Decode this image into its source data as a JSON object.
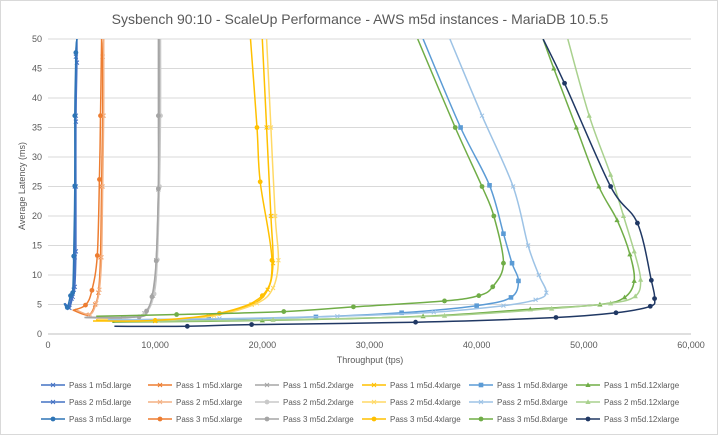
{
  "chart_data": {
    "type": "line",
    "title": "Sysbench 90:10 - ScaleUp Performance - AWS m5d instances - MariaDB 10.5.5",
    "xlabel": "Throughput (tps)",
    "ylabel": "Average Latency (ms)",
    "xlim": [
      0,
      60000
    ],
    "ylim": [
      0,
      50
    ],
    "x_ticks": [
      0,
      10000,
      20000,
      30000,
      40000,
      50000,
      60000
    ],
    "x_tick_labels": [
      "0",
      "10,000",
      "20,000",
      "30,000",
      "40,000",
      "50,000",
      "60,000"
    ],
    "y_ticks": [
      0,
      5,
      10,
      15,
      20,
      25,
      30,
      35,
      40,
      45,
      50
    ],
    "grid": "horizontal",
    "legend_position": "bottom",
    "series": [
      {
        "name": "Pass 1 m5d.large",
        "color": "#4472c4",
        "marker": "x",
        "points": [
          [
            1600,
            5.2
          ],
          [
            1900,
            4.5
          ],
          [
            2200,
            6.0
          ],
          [
            2400,
            7.5
          ],
          [
            2500,
            13
          ],
          [
            2500,
            25
          ],
          [
            2600,
            37
          ],
          [
            2600,
            47
          ],
          [
            2700,
            50
          ]
        ]
      },
      {
        "name": "Pass 1 m5d.xlarge",
        "color": "#ed7d31",
        "marker": "x",
        "points": [
          [
            2400,
            4.0
          ],
          [
            3800,
            3.2
          ],
          [
            4400,
            5.0
          ],
          [
            4700,
            7.0
          ],
          [
            4900,
            13
          ],
          [
            5000,
            25
          ],
          [
            5100,
            37
          ],
          [
            5100,
            47
          ],
          [
            5200,
            50
          ]
        ]
      },
      {
        "name": "Pass 1 m5d.2xlarge",
        "color": "#a5a5a5",
        "marker": "x",
        "points": [
          [
            3500,
            2.8
          ],
          [
            7000,
            2.7
          ],
          [
            9000,
            3.5
          ],
          [
            9800,
            6.5
          ],
          [
            10100,
            12.5
          ],
          [
            10300,
            24.5
          ],
          [
            10400,
            37
          ],
          [
            10400,
            50
          ]
        ]
      },
      {
        "name": "Pass 1 m5d.4xlarge",
        "color": "#ffc000",
        "marker": "x",
        "points": [
          [
            4500,
            2.4
          ],
          [
            10000,
            2.2
          ],
          [
            15000,
            3.0
          ],
          [
            19000,
            5.0
          ],
          [
            20500,
            7.5
          ],
          [
            21000,
            12
          ],
          [
            20800,
            20
          ],
          [
            20400,
            35
          ],
          [
            20000,
            50
          ]
        ]
      },
      {
        "name": "Pass 1 m5d.8xlarge",
        "color": "#5b9bd5",
        "marker": "square",
        "points": [
          [
            5500,
            2.3
          ],
          [
            15000,
            2.5
          ],
          [
            25000,
            2.9
          ],
          [
            33000,
            3.6
          ],
          [
            40000,
            4.8
          ],
          [
            43200,
            6.2
          ],
          [
            43900,
            9.0
          ],
          [
            43300,
            12
          ],
          [
            42500,
            17
          ],
          [
            41200,
            25.2
          ],
          [
            38500,
            35
          ],
          [
            35000,
            50
          ]
        ]
      },
      {
        "name": "Pass 1 m5d.12xlarge",
        "color": "#70ad47",
        "marker": "triangle",
        "points": [
          [
            6000,
            2.0
          ],
          [
            20000,
            2.3
          ],
          [
            35000,
            3.0
          ],
          [
            45000,
            4.2
          ],
          [
            51500,
            5.0
          ],
          [
            53800,
            6.2
          ],
          [
            54700,
            9.0
          ],
          [
            54300,
            13.5
          ],
          [
            53100,
            19.3
          ],
          [
            51400,
            25
          ],
          [
            49300,
            35
          ],
          [
            47200,
            45
          ],
          [
            46200,
            50
          ]
        ]
      },
      {
        "name": "Pass 2 m5d.large",
        "color": "#4472c4",
        "marker": "x",
        "points": [
          [
            1700,
            5.0
          ],
          [
            2000,
            4.4
          ],
          [
            2300,
            6.3
          ],
          [
            2500,
            8.0
          ],
          [
            2600,
            14
          ],
          [
            2600,
            25
          ],
          [
            2600,
            36
          ],
          [
            2700,
            46
          ],
          [
            2700,
            50
          ]
        ]
      },
      {
        "name": "Pass 2 m5d.xlarge",
        "color": "#f4b183",
        "marker": "x",
        "points": [
          [
            2500,
            4.2
          ],
          [
            3900,
            3.3
          ],
          [
            4500,
            5.2
          ],
          [
            4800,
            7.5
          ],
          [
            5000,
            13
          ],
          [
            5100,
            25
          ],
          [
            5200,
            37
          ],
          [
            5200,
            50
          ]
        ]
      },
      {
        "name": "Pass 2 m5d.2xlarge",
        "color": "#c9c9c9",
        "marker": "circle",
        "points": [
          [
            3600,
            2.9
          ],
          [
            7100,
            2.8
          ],
          [
            9100,
            3.6
          ],
          [
            9900,
            6.8
          ],
          [
            10200,
            12.6
          ],
          [
            10400,
            25
          ],
          [
            10500,
            37
          ],
          [
            10500,
            50
          ]
        ]
      },
      {
        "name": "Pass 2 m5d.4xlarge",
        "color": "#ffd966",
        "marker": "x",
        "points": [
          [
            4600,
            2.5
          ],
          [
            10200,
            2.3
          ],
          [
            15500,
            3.1
          ],
          [
            19500,
            5.2
          ],
          [
            21000,
            7.8
          ],
          [
            21500,
            12.5
          ],
          [
            21200,
            20
          ],
          [
            20800,
            35
          ],
          [
            20400,
            50
          ]
        ]
      },
      {
        "name": "Pass 2 m5d.8xlarge",
        "color": "#9dc3e6",
        "marker": "x",
        "points": [
          [
            5600,
            2.4
          ],
          [
            16000,
            2.6
          ],
          [
            27000,
            3.0
          ],
          [
            36000,
            3.7
          ],
          [
            42500,
            4.8
          ],
          [
            45500,
            5.8
          ],
          [
            46500,
            7.0
          ],
          [
            45800,
            10
          ],
          [
            44800,
            15
          ],
          [
            43400,
            25
          ],
          [
            40500,
            37
          ],
          [
            37500,
            50
          ]
        ]
      },
      {
        "name": "Pass 2 m5d.12xlarge",
        "color": "#a9d18e",
        "marker": "triangle",
        "points": [
          [
            6200,
            2.1
          ],
          [
            21000,
            2.4
          ],
          [
            37000,
            3.1
          ],
          [
            47000,
            4.3
          ],
          [
            52500,
            5.2
          ],
          [
            54800,
            6.4
          ],
          [
            55300,
            9.2
          ],
          [
            54700,
            14
          ],
          [
            53700,
            20
          ],
          [
            52500,
            27
          ],
          [
            50500,
            37
          ],
          [
            48500,
            50
          ]
        ]
      },
      {
        "name": "Pass 3 m5d.large",
        "color": "#2e75b6",
        "marker": "circle",
        "points": [
          [
            1500,
            5.2
          ],
          [
            1800,
            4.5
          ],
          [
            2100,
            6.5
          ],
          [
            2300,
            7.0
          ],
          [
            2400,
            13.2
          ],
          [
            2500,
            25.1
          ],
          [
            2500,
            37
          ],
          [
            2600,
            47.7
          ],
          [
            2700,
            50
          ]
        ]
      },
      {
        "name": "Pass 3 m5d.xlarge",
        "color": "#ed7d31",
        "marker": "circle",
        "points": [
          [
            2300,
            4.0
          ],
          [
            3500,
            4.9
          ],
          [
            4100,
            7.4
          ],
          [
            4600,
            13.3
          ],
          [
            4800,
            26.2
          ],
          [
            4900,
            37
          ],
          [
            5000,
            50
          ]
        ]
      },
      {
        "name": "Pass 3 m5d.2xlarge",
        "color": "#a5a5a5",
        "marker": "circle",
        "points": [
          [
            3400,
            2.8
          ],
          [
            8500,
            2.9
          ],
          [
            9200,
            3.9
          ],
          [
            9700,
            6.3
          ],
          [
            10100,
            12.4
          ],
          [
            10300,
            24.6
          ],
          [
            10300,
            37
          ],
          [
            10300,
            50
          ]
        ]
      },
      {
        "name": "Pass 3 m5d.4xlarge",
        "color": "#ffc000",
        "marker": "circle",
        "points": [
          [
            4200,
            2.2
          ],
          [
            10000,
            2.3
          ],
          [
            16000,
            3.5
          ],
          [
            20000,
            6.5
          ],
          [
            20900,
            12.5
          ],
          [
            19800,
            25.8
          ],
          [
            19500,
            35
          ],
          [
            18900,
            50
          ]
        ]
      },
      {
        "name": "Pass 3 m5d.8xlarge",
        "color": "#70ad47",
        "marker": "circle",
        "points": [
          [
            4500,
            3.0
          ],
          [
            12000,
            3.3
          ],
          [
            22000,
            3.8
          ],
          [
            28500,
            4.6
          ],
          [
            37000,
            5.6
          ],
          [
            40200,
            6.5
          ],
          [
            41500,
            8.0
          ],
          [
            42500,
            12.0
          ],
          [
            41600,
            20
          ],
          [
            40500,
            25
          ],
          [
            38000,
            35
          ],
          [
            34500,
            50
          ]
        ]
      },
      {
        "name": "Pass 3 m5d.12xlarge",
        "color": "#203864",
        "marker": "circle",
        "points": [
          [
            6200,
            1.3
          ],
          [
            13000,
            1.3
          ],
          [
            19000,
            1.6
          ],
          [
            34300,
            2.0
          ],
          [
            47400,
            2.8
          ],
          [
            53000,
            3.6
          ],
          [
            56200,
            4.7
          ],
          [
            56600,
            6.0
          ],
          [
            56300,
            9.1
          ],
          [
            55000,
            18.8
          ],
          [
            52500,
            25
          ],
          [
            48200,
            42.5
          ],
          [
            46200,
            50
          ]
        ]
      }
    ]
  }
}
